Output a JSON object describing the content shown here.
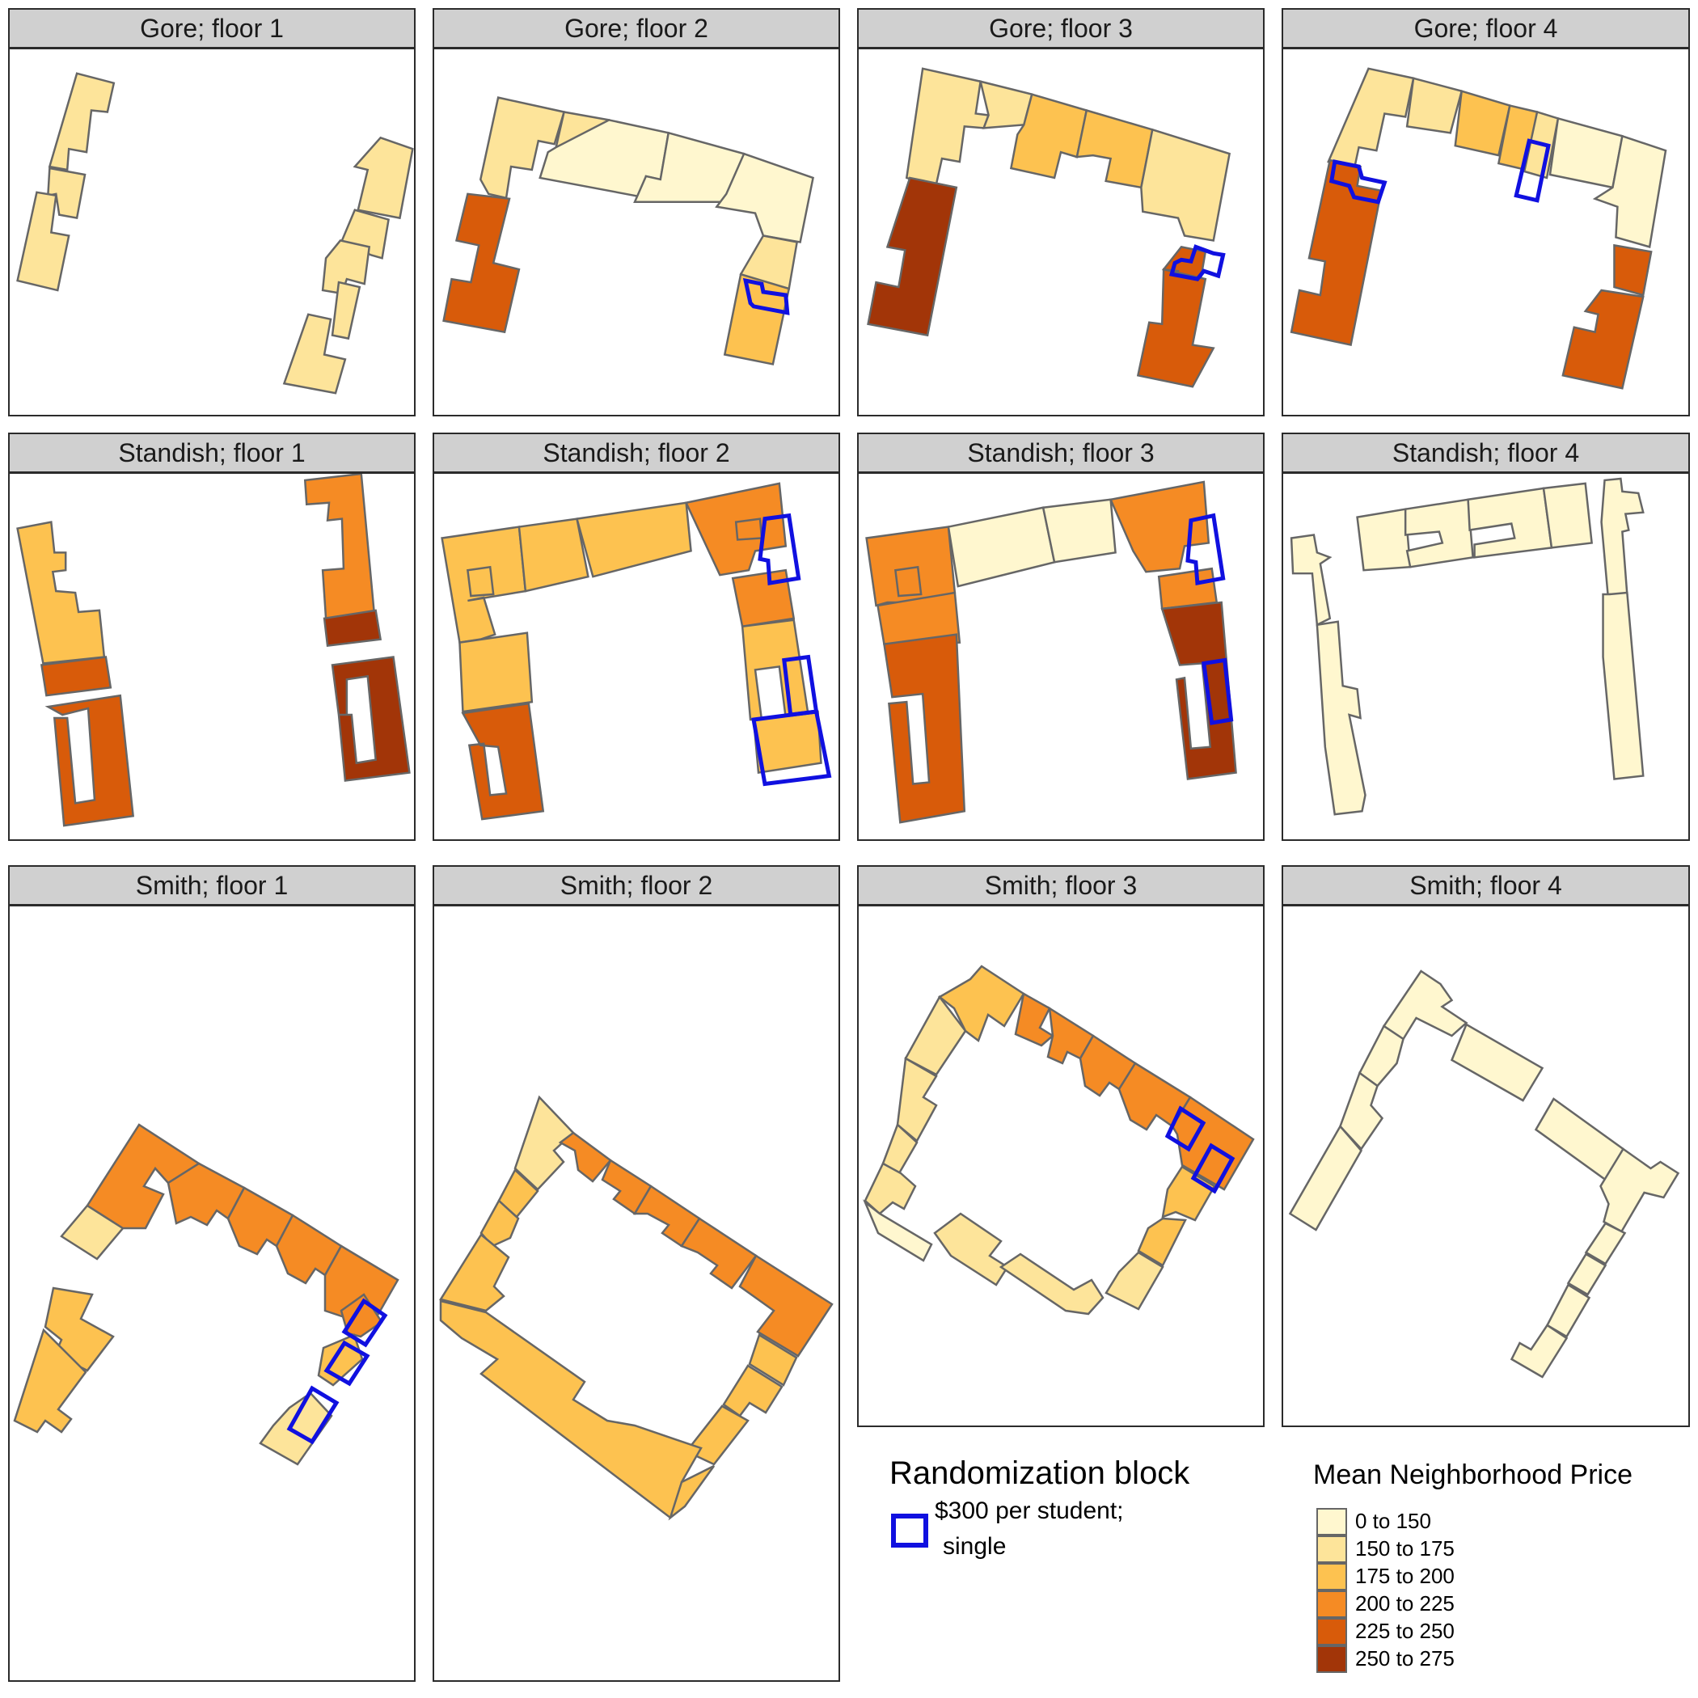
{
  "panels": [
    {
      "title": "Gore; floor 1"
    },
    {
      "title": "Gore; floor 2"
    },
    {
      "title": "Gore; floor 3"
    },
    {
      "title": "Gore; floor 4"
    },
    {
      "title": "Standish; floor 1"
    },
    {
      "title": "Standish; floor 2"
    },
    {
      "title": "Standish; floor 3"
    },
    {
      "title": "Standish; floor 4"
    },
    {
      "title": "Smith; floor 1"
    },
    {
      "title": "Smith; floor 2"
    },
    {
      "title": "Smith; floor 3"
    },
    {
      "title": "Smith; floor 4"
    }
  ],
  "legend_block": {
    "title": "Randomization block",
    "label_line1": "$300 per student;",
    "label_line2": "single",
    "outline_color": "#1010e0"
  },
  "legend_price": {
    "title": "Mean Neighborhood Price",
    "classes": [
      {
        "label": "0 to 150",
        "color": "#fff7cf"
      },
      {
        "label": "150 to 175",
        "color": "#fde49a"
      },
      {
        "label": "175 to 200",
        "color": "#fdc250"
      },
      {
        "label": "200 to 225",
        "color": "#f58b24"
      },
      {
        "label": "225 to 250",
        "color": "#d85b0a"
      },
      {
        "label": "250 to 275",
        "color": "#a23508"
      }
    ]
  },
  "map_style": {
    "room_outline_color": "#666666",
    "panel_border_color": "#2b2b2b",
    "strip_color": "#d0d0d0"
  }
}
